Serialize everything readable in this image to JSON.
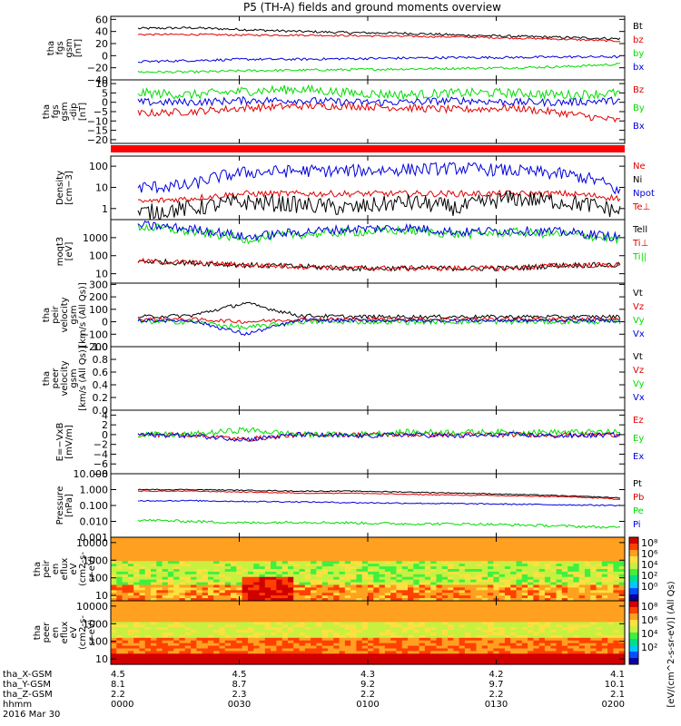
{
  "title": "P5 (TH-A) fields and ground moments overview",
  "colors": {
    "black": "#000000",
    "red": "#e00000",
    "green": "#00dd00",
    "blue": "#0000dd",
    "bar": "#ff0000"
  },
  "chart_data": [
    {
      "type": "line",
      "ylabel": [
        "tha",
        "fgs",
        "gsm",
        "[nT]"
      ],
      "ylim": [
        -40,
        65
      ],
      "yticks": [
        "60",
        "40",
        "20",
        "0",
        "−20",
        "−40"
      ],
      "ytick_vals": [
        60,
        40,
        20,
        0,
        -20,
        -40
      ],
      "series": [
        {
          "name": "Bt",
          "color": "black",
          "base": [
            45,
            46,
            43,
            40,
            38,
            37,
            34,
            32,
            30,
            28
          ],
          "noise": 2
        },
        {
          "name": "bz",
          "color": "red",
          "base": [
            35,
            35,
            34,
            34,
            33,
            32,
            31,
            29,
            27,
            24
          ],
          "noise": 1.5
        },
        {
          "name": "by",
          "color": "green",
          "base": [
            -27,
            -27,
            -25,
            -24,
            -23,
            -22,
            -21,
            -20,
            -18,
            -14
          ],
          "noise": 2
        },
        {
          "name": "bx",
          "color": "blue",
          "base": [
            -10,
            -8,
            -6,
            -6,
            -5,
            -4,
            -3,
            -3,
            -2,
            -2
          ],
          "noise": 2
        }
      ]
    },
    {
      "type": "line",
      "ylabel": [
        "tha",
        "fgs",
        "gsm",
        "-dip",
        "[nT]"
      ],
      "ylim": [
        -22,
        12
      ],
      "yticks": [
        "10",
        "5",
        "0",
        "−5",
        "−10",
        "−15",
        "−20"
      ],
      "ytick_vals": [
        10,
        5,
        0,
        -5,
        -10,
        -15,
        -20
      ],
      "series": [
        {
          "name": "Bz",
          "color": "red",
          "base": [
            -6,
            -5,
            -3,
            -2,
            -2,
            -3,
            -4,
            -3,
            -6,
            -10
          ],
          "noise": 2
        },
        {
          "name": "By",
          "color": "green",
          "base": [
            5,
            4,
            6,
            7,
            5,
            4,
            5,
            5,
            4,
            5
          ],
          "noise": 2.5
        },
        {
          "name": "Bx",
          "color": "blue",
          "base": [
            0,
            0,
            1,
            1,
            0,
            0,
            1,
            0,
            0,
            1
          ],
          "noise": 2
        }
      ]
    },
    {
      "type": "bar",
      "label": "status bar"
    },
    {
      "type": "line",
      "log": true,
      "ylabel": [
        "Density",
        "[cm−3]"
      ],
      "ylim": [
        0.3,
        300
      ],
      "yticks": [
        "100",
        "10",
        "1"
      ],
      "ytick_vals": [
        100,
        10,
        1
      ],
      "series": [
        {
          "name": "Ne",
          "color": "red",
          "base": [
            2,
            3,
            5,
            5,
            5,
            5,
            5,
            5,
            5,
            3
          ],
          "noise": 0.15
        },
        {
          "name": "Ni",
          "color": "black",
          "base": [
            0.6,
            1,
            2,
            1.5,
            1,
            2,
            1,
            3,
            2,
            0.7
          ],
          "noise": 0.4
        },
        {
          "name": "Npot",
          "color": "blue",
          "base": [
            10,
            12,
            50,
            60,
            60,
            70,
            80,
            60,
            40,
            5
          ],
          "noise": 0.3
        },
        {
          "name": "Te⊥",
          "color": "red",
          "base": [],
          "noise": 0
        }
      ]
    },
    {
      "type": "line",
      "log": true,
      "ylabel": [
        "moqt3",
        "[eV]"
      ],
      "ylim": [
        3,
        10000
      ],
      "yticks": [
        "1000",
        "100",
        "10"
      ],
      "ytick_vals": [
        1000,
        100,
        10
      ],
      "series": [
        {
          "name": "Tell",
          "color": "black",
          "base": [
            50,
            40,
            30,
            25,
            20,
            20,
            20,
            20,
            30,
            30
          ],
          "noise": 0.15
        },
        {
          "name": "Ti⊥",
          "color": "red",
          "base": [
            50,
            40,
            30,
            25,
            20,
            20,
            20,
            20,
            30,
            30
          ],
          "noise": 0.15
        },
        {
          "name": "Ti||",
          "color": "green",
          "base": [
            4000,
            2000,
            800,
            1500,
            2000,
            2500,
            1500,
            2000,
            1500,
            800
          ],
          "noise": 0.25
        },
        {
          "name": "",
          "color": "blue",
          "base": [
            5000,
            3000,
            1000,
            2000,
            3000,
            3500,
            2000,
            2500,
            2000,
            1000
          ],
          "noise": 0.25
        }
      ]
    },
    {
      "type": "line",
      "ylabel": [
        "tha",
        "peir",
        "velocity",
        "gsm",
        "[km/s (All Qs)]"
      ],
      "ylim": [
        -200,
        310
      ],
      "yticks": [
        "300",
        "200",
        "100",
        "0",
        "−100",
        "−200"
      ],
      "ytick_vals": [
        300,
        200,
        100,
        0,
        -100,
        -200
      ],
      "series": [
        {
          "name": "Vt",
          "color": "black",
          "base": [
            40,
            50,
            150,
            50,
            40,
            40,
            40,
            40,
            40,
            40
          ],
          "noise": 15
        },
        {
          "name": "Vz",
          "color": "red",
          "base": [
            20,
            20,
            0,
            20,
            20,
            20,
            20,
            20,
            20,
            20
          ],
          "noise": 15
        },
        {
          "name": "Vy",
          "color": "green",
          "base": [
            0,
            0,
            -50,
            0,
            0,
            0,
            0,
            0,
            0,
            0
          ],
          "noise": 20
        },
        {
          "name": "Vx",
          "color": "blue",
          "base": [
            10,
            10,
            -100,
            10,
            10,
            10,
            10,
            10,
            10,
            10
          ],
          "noise": 15
        }
      ]
    },
    {
      "type": "line",
      "ylabel": [
        "tha",
        "peer",
        "velocity",
        "gsm",
        "[km/s (All Qs)]"
      ],
      "ylim": [
        0,
        1.0
      ],
      "yticks": [
        "1.0",
        "0.8",
        "0.6",
        "0.4",
        "0.2",
        "0.0"
      ],
      "ytick_vals": [
        1.0,
        0.8,
        0.6,
        0.4,
        0.2,
        0.0
      ],
      "series": [
        {
          "name": "Vt",
          "color": "black",
          "base": [],
          "noise": 0
        },
        {
          "name": "Vz",
          "color": "red",
          "base": [],
          "noise": 0
        },
        {
          "name": "Vy",
          "color": "green",
          "base": [],
          "noise": 0
        },
        {
          "name": "Vx",
          "color": "blue",
          "base": [],
          "noise": 0
        }
      ]
    },
    {
      "type": "line",
      "ylabel": [
        "E=−VxB",
        "[mV/m]"
      ],
      "ylim": [
        -8,
        5
      ],
      "yticks": [
        "4",
        "2",
        "0",
        "−2",
        "−4",
        "−6",
        "−8"
      ],
      "ytick_vals": [
        4,
        2,
        0,
        -2,
        -4,
        -6,
        -8
      ],
      "series": [
        {
          "name": "Ez",
          "color": "red",
          "base": [
            0,
            0,
            -1,
            0,
            0,
            0,
            0,
            0,
            0,
            0
          ],
          "noise": 0.5
        },
        {
          "name": "Ey",
          "color": "green",
          "base": [
            0,
            0,
            1,
            0,
            0,
            0.5,
            0.5,
            0.5,
            0.5,
            0.5
          ],
          "noise": 0.6
        },
        {
          "name": "Ex",
          "color": "blue",
          "base": [
            0,
            -0.2,
            -1,
            0,
            -0.3,
            0,
            -0.3,
            0,
            -0.3,
            0
          ],
          "noise": 0.5
        }
      ]
    },
    {
      "type": "line",
      "log": true,
      "ylabel": [
        "Pressure",
        "[nPa]"
      ],
      "ylim": [
        0.001,
        10
      ],
      "yticks": [
        "10.000",
        "1.000",
        "0.100",
        "0.010",
        "0.001"
      ],
      "ytick_vals": [
        10,
        1,
        0.1,
        0.01,
        0.001
      ],
      "series": [
        {
          "name": "Pt",
          "color": "black",
          "base": [
            1.0,
            1.0,
            0.9,
            0.8,
            0.8,
            0.7,
            0.6,
            0.5,
            0.4,
            0.3
          ],
          "noise": 0.03
        },
        {
          "name": "Pb",
          "color": "red",
          "base": [
            0.8,
            0.8,
            0.7,
            0.6,
            0.6,
            0.5,
            0.45,
            0.4,
            0.35,
            0.25
          ],
          "noise": 0.03
        },
        {
          "name": "Pe",
          "color": "green",
          "base": [
            0.012,
            0.01,
            0.008,
            0.009,
            0.008,
            0.007,
            0.007,
            0.006,
            0.005,
            0.004
          ],
          "noise": 0.08
        },
        {
          "name": "Pi",
          "color": "blue",
          "base": [
            0.2,
            0.2,
            0.18,
            0.17,
            0.15,
            0.14,
            0.13,
            0.12,
            0.11,
            0.1
          ],
          "noise": 0.04
        }
      ]
    },
    {
      "type": "heatmap",
      "ylabel": [
        "tha",
        "peir",
        "en",
        "eflux",
        "eV",
        "(cm2-s-",
        "sr-eV)"
      ],
      "log": true,
      "ylim": [
        5,
        20000
      ],
      "yticks": [
        "10000",
        "1000",
        "100",
        "10"
      ],
      "ytick_vals": [
        10000,
        1000,
        100,
        10
      ],
      "colorbar_label": "[eV/(cm^2-s-sr-eV)] (All Qs)",
      "cbar_ticks": [
        "10⁸",
        "10⁶",
        "10⁴",
        "10²",
        "10⁰"
      ]
    },
    {
      "type": "heatmap",
      "ylabel": [
        "tha",
        "peer",
        "en",
        "eflux",
        "eV",
        "(cm2-s-",
        "sr-eV)"
      ],
      "log": true,
      "ylim": [
        5,
        20000
      ],
      "yticks": [
        "10000",
        "1000",
        "100",
        "10"
      ],
      "ytick_vals": [
        10000,
        1000,
        100,
        10
      ],
      "colorbar_label": "[eV/(cm^2-s-sr-eV)] (All Qs)",
      "cbar_ticks": [
        "10⁸",
        "10⁶",
        "10⁴",
        "10²"
      ]
    }
  ],
  "xaxis": {
    "rows": [
      {
        "label": "tha_X-GSM",
        "values": [
          "4.5",
          "4.5",
          "4.3",
          "4.2",
          "4.1"
        ]
      },
      {
        "label": "tha_Y-GSM",
        "values": [
          "8.1",
          "8.7",
          "9.2",
          "9.7",
          "10.1"
        ]
      },
      {
        "label": "tha_Z-GSM",
        "values": [
          "2.2",
          "2.3",
          "2.2",
          "2.2",
          "2.1"
        ]
      },
      {
        "label": "hhmm",
        "values": [
          "0000",
          "0030",
          "0100",
          "0130",
          "0200"
        ]
      }
    ],
    "date": "2016 Mar 30"
  }
}
